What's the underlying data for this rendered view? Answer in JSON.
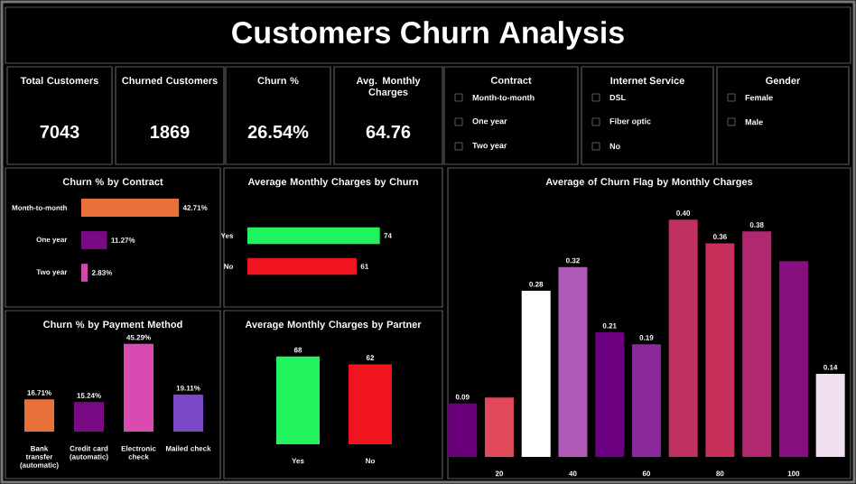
{
  "chart_data": [
    {
      "type": "other",
      "title": "Customers Churn Analysis"
    },
    {
      "type": "other",
      "title": "Total Customers",
      "annotations": [
        "7043"
      ]
    },
    {
      "type": "other",
      "title": "Churned Customers",
      "annotations": [
        "1869"
      ]
    },
    {
      "type": "other",
      "title": "Churn %",
      "annotations": [
        "26.54%"
      ]
    },
    {
      "type": "other",
      "title": "Avg. Monthly Charges",
      "annotations": [
        "64.76"
      ]
    },
    {
      "type": "other",
      "title": "Contract",
      "annotations": [
        "Month-to-month",
        "One year",
        "Two year"
      ]
    },
    {
      "type": "other",
      "title": "Internet Service",
      "annotations": [
        "DSL",
        "Fiber optic",
        "No"
      ]
    },
    {
      "type": "other",
      "title": "Gender",
      "annotations": [
        "Female",
        "Male"
      ]
    },
    {
      "type": "bar",
      "orientation": "horizontal",
      "title": "Churn % by Contract",
      "categories": [
        "Month-to-month",
        "One year",
        "Two year"
      ],
      "values": [
        42.71,
        11.27,
        2.83
      ],
      "value_labels": [
        "42.71%",
        "11.27%",
        "2.83%"
      ],
      "colors": [
        "#e8713a",
        "#7a0a84",
        "#d04aa8"
      ],
      "tick_labels": "y"
    },
    {
      "type": "bar",
      "orientation": "horizontal",
      "title": "Average Monthly Charges by Churn",
      "categories": [
        "Yes",
        "No"
      ],
      "values": [
        74,
        61
      ],
      "data_labels": true,
      "colors": [
        "#21f35f",
        "#f0141e"
      ],
      "tick_labels": "y"
    },
    {
      "type": "bar",
      "title": "Churn % by Payment Method",
      "categories": [
        "Bank transfer (automatic)",
        "Credit card (automatic)",
        "Electronic check",
        "Mailed check"
      ],
      "values": [
        16.71,
        15.24,
        45.29,
        19.11
      ],
      "value_labels": [
        "16.71%",
        "15.24%",
        "45.29%",
        "19.11%"
      ],
      "colors": [
        "#e8713a",
        "#7a0a84",
        "#d84bb0",
        "#7b48c8"
      ],
      "tick_labels": "x"
    },
    {
      "type": "bar",
      "title": "Average Monthly Charges by Partner",
      "categories": [
        "Yes",
        "No"
      ],
      "values": [
        68,
        62
      ],
      "data_labels": true,
      "colors": [
        "#21f35f",
        "#f0141e"
      ],
      "tick_labels": "x"
    },
    {
      "type": "bar",
      "title": "Average of Churn Flag by Monthly Charges",
      "x": [
        10,
        20,
        30,
        40,
        50,
        60,
        70,
        80,
        90,
        100,
        110
      ],
      "values": [
        0.09,
        0.1,
        0.28,
        0.32,
        0.21,
        0.19,
        0.4,
        0.36,
        0.38,
        0.33,
        0.14
      ],
      "value_labels": [
        "0.09",
        null,
        "0.28",
        "0.32",
        "0.21",
        "0.19",
        "0.40",
        "0.36",
        "0.38",
        null,
        "0.14"
      ],
      "colors": [
        "#6a007a",
        "#e04a5a",
        "#ffffff",
        "#b05ab8",
        "#6c0080",
        "#8a2a9a",
        "#c03060",
        "#c8305c",
        "#b02870",
        "#880f80",
        "#f0e0f0"
      ],
      "xlim": [
        7,
        115
      ],
      "xticks": [
        20,
        40,
        60,
        80,
        100
      ],
      "tick_labels": "x"
    }
  ]
}
